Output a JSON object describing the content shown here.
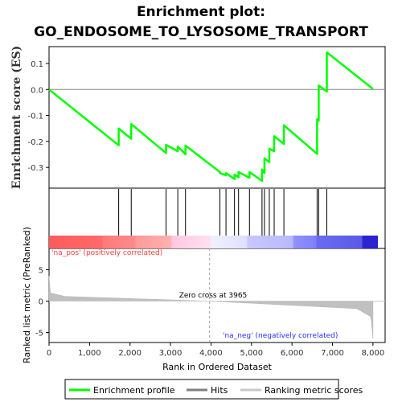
{
  "title_line1": "Enrichment plot:",
  "title_line2": "GO_ENDOSOME_TO_LYSOSOME_TRANSPORT",
  "chart_data": {
    "type": "line",
    "es_panel": {
      "ylabel": "Enrichment score (ES)",
      "ylim": [
        -0.38,
        0.165
      ],
      "yticks": [
        -0.3,
        -0.2,
        -0.1,
        0.0,
        0.1
      ],
      "ytick_labels": [
        "-0.3",
        "-0.2",
        "-0.1",
        "0.0",
        "0.1"
      ],
      "series": [
        {
          "name": "Enrichment profile",
          "color": "#00ff00",
          "x": [
            0,
            1720,
            1720,
            2030,
            2030,
            2890,
            2890,
            3180,
            3180,
            3370,
            3370,
            4220,
            4220,
            4370,
            4370,
            4580,
            4580,
            4680,
            4680,
            4950,
            4950,
            5260,
            5260,
            5320,
            5320,
            5440,
            5440,
            5560,
            5560,
            5800,
            5800,
            6620,
            6620,
            6660,
            6660,
            6860,
            6860,
            8000
          ],
          "y": [
            0.0,
            -0.215,
            -0.15,
            -0.19,
            -0.133,
            -0.245,
            -0.213,
            -0.238,
            -0.22,
            -0.25,
            -0.216,
            -0.318,
            -0.322,
            -0.33,
            -0.322,
            -0.345,
            -0.328,
            -0.338,
            -0.318,
            -0.34,
            -0.318,
            -0.352,
            -0.308,
            -0.322,
            -0.265,
            -0.28,
            -0.228,
            -0.238,
            -0.18,
            -0.21,
            -0.138,
            -0.248,
            -0.115,
            -0.12,
            0.015,
            -0.008,
            0.143,
            0.002
          ]
        }
      ]
    },
    "hits_panel": {
      "hit_positions": [
        1720,
        2030,
        2890,
        3180,
        3370,
        4220,
        4370,
        4580,
        4680,
        4950,
        5260,
        5320,
        5440,
        5560,
        5800,
        6620,
        6660,
        6860
      ]
    },
    "metric_panel": {
      "ylabel": "Ranked list metric (PreRanked)",
      "ylim": [
        -6.6,
        8.4
      ],
      "yticks": [
        -5,
        0,
        5
      ],
      "ytick_labels": [
        "-5",
        "0",
        "5"
      ],
      "zero_cross_label": "Zero cross at 3965",
      "zero_cross": 3965,
      "pos_label": "'na_pos' (positively correlated)",
      "neg_label": "'na_neg' (negatively correlated)",
      "fill_color": "#c0c0c0"
    },
    "xaxis": {
      "xlabel": "Rank in Ordered Dataset",
      "xlim": [
        0,
        8300
      ],
      "xticks": [
        0,
        1000,
        2000,
        3000,
        4000,
        5000,
        6000,
        7000,
        8000
      ],
      "xtick_labels": [
        "0",
        "1,000",
        "2,000",
        "3,000",
        "4,000",
        "5,000",
        "6,000",
        "7,000",
        "8,000"
      ],
      "n": 8000
    },
    "legend": {
      "placement": "bottom",
      "items": [
        {
          "label": "Enrichment profile",
          "color": "#00ff00"
        },
        {
          "label": "Hits",
          "color": "#808080"
        },
        {
          "label": "Ranking metric scores",
          "color": "#c8c8c8"
        }
      ]
    },
    "colors": {
      "pos_text": "#ff3b3b",
      "neg_text": "#3030ff",
      "zero_line": "#a0a0a0"
    }
  }
}
